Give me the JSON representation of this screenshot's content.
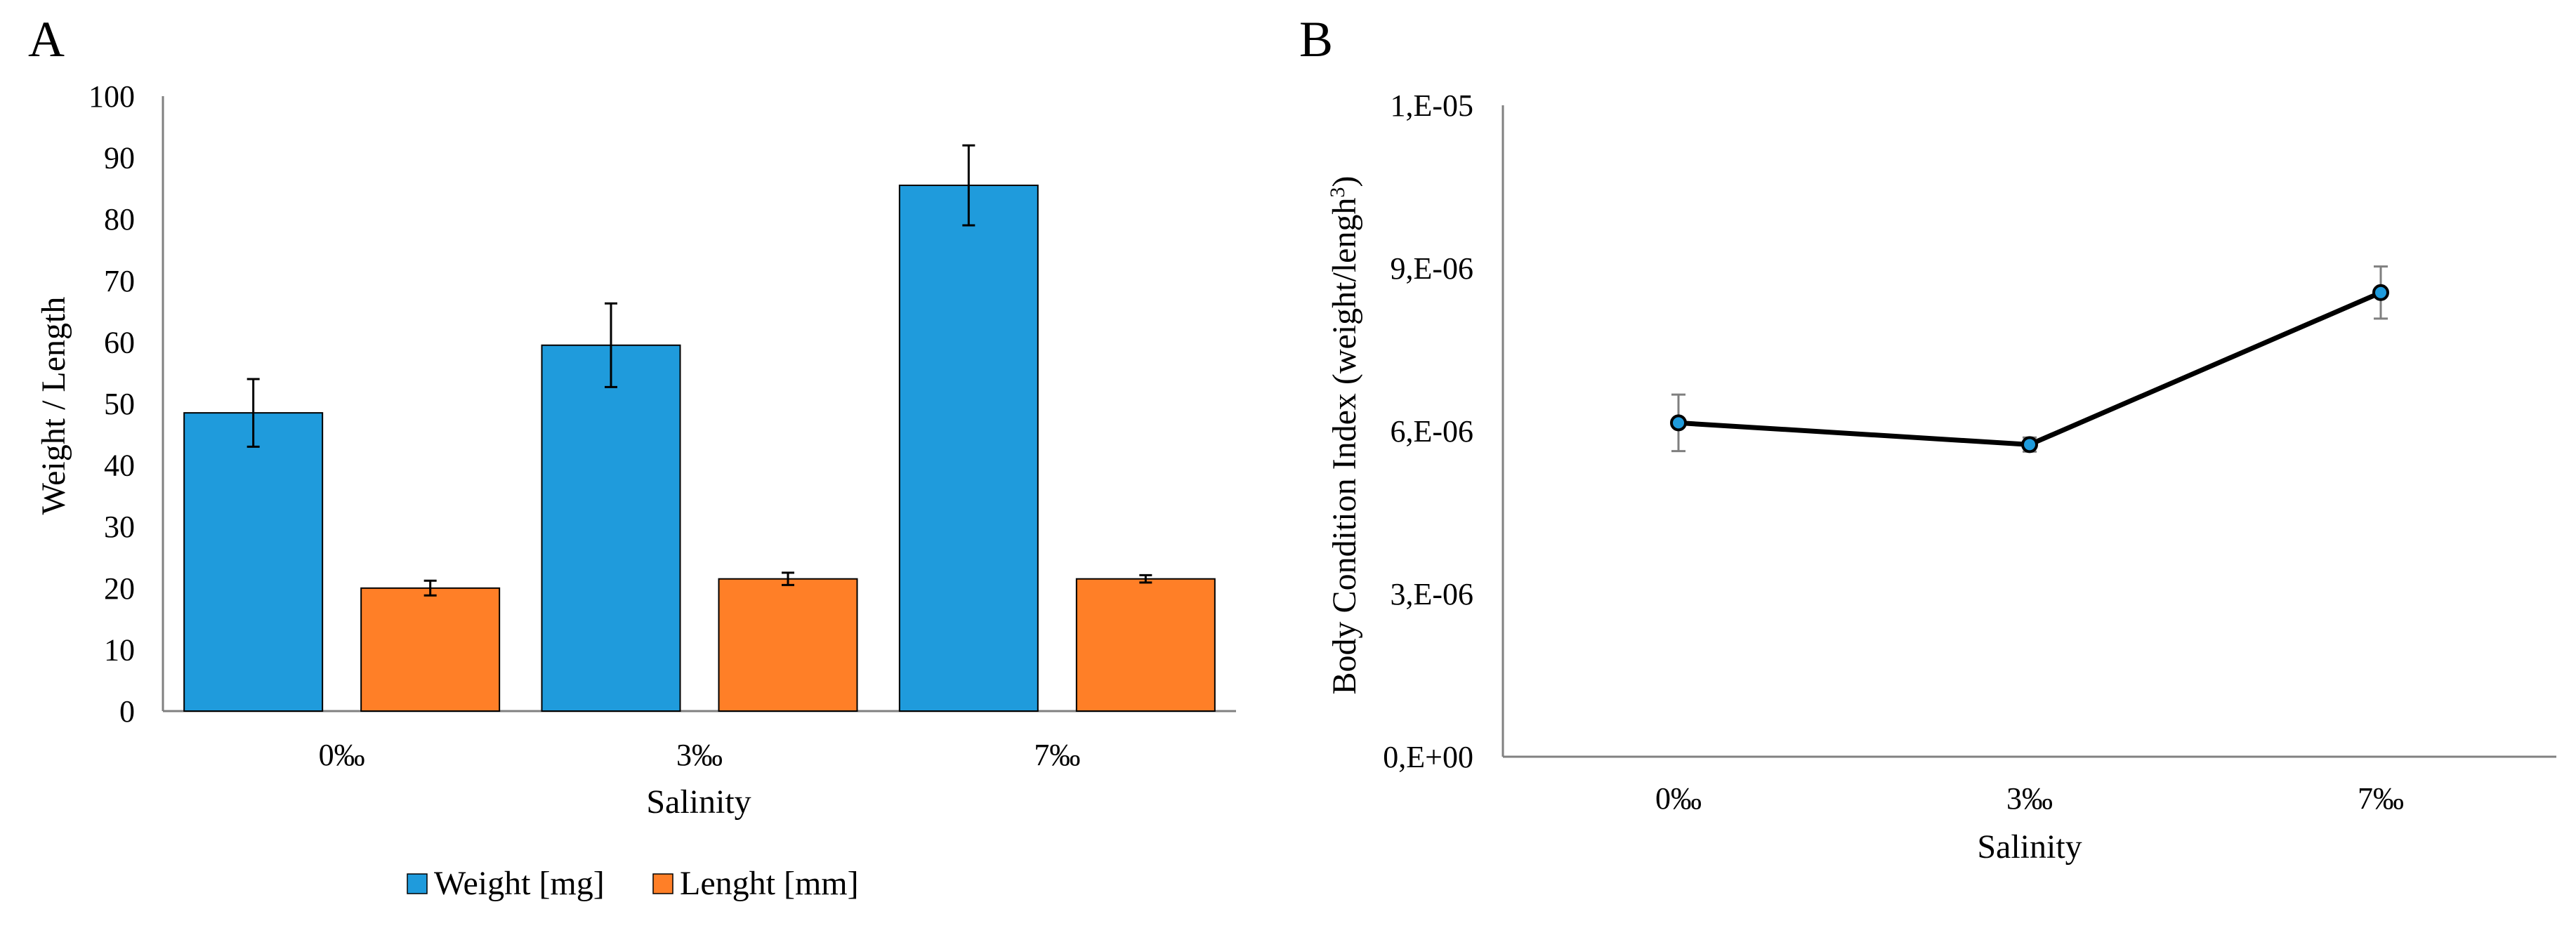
{
  "figure": {
    "panels": [
      "A",
      "B"
    ]
  },
  "chart_data": [
    {
      "type": "bar",
      "panel": "A",
      "title": "",
      "categories": [
        "0‰",
        "3‰",
        "7‰"
      ],
      "series": [
        {
          "name": "Weight [mg]",
          "color": "#1f9bdc",
          "values": [
            48.5,
            59.5,
            85.5
          ],
          "errors": [
            5.5,
            6.8,
            6.5
          ]
        },
        {
          "name": "Lenght [mm]",
          "color": "#ff7f27",
          "values": [
            20.0,
            21.5,
            21.5
          ],
          "errors": [
            1.2,
            1.0,
            0.6
          ]
        }
      ],
      "xlabel": "Salinity",
      "ylabel": "Weight / Length",
      "ylim": [
        0,
        100
      ],
      "yticks": [
        0,
        10,
        20,
        30,
        40,
        50,
        60,
        70,
        80,
        90,
        100
      ],
      "yticklabels": [
        "0",
        "10",
        "20",
        "30",
        "40",
        "50",
        "60",
        "70",
        "80",
        "90",
        "100"
      ],
      "grid": false,
      "legend": "bottom-center"
    },
    {
      "type": "line",
      "panel": "B",
      "title": "",
      "categories": [
        "0‰",
        "3‰",
        "7‰"
      ],
      "series": [
        {
          "name": "Body Condition Index",
          "color": "#000000",
          "marker_color": "#1f9bdc",
          "values": [
            6.15e-06,
            5.75e-06,
            8.55e-06
          ],
          "errors": [
            5.2e-07,
            1.3e-07,
            4.8e-07
          ]
        }
      ],
      "xlabel": "Salinity",
      "ylabel": "Body Condition Index (weight/lengh",
      "ylabel_superscript": "3",
      "ylabel_suffix": ")",
      "ylim": [
        0,
        1.2e-05
      ],
      "yticks": [
        0,
        3e-06,
        6e-06,
        9e-06,
        1.2e-05
      ],
      "yticklabels": [
        "0,E+00",
        "3,E-06",
        "6,E-06",
        "9,E-06",
        "1,E-05"
      ],
      "grid": false,
      "legend": "none"
    }
  ]
}
